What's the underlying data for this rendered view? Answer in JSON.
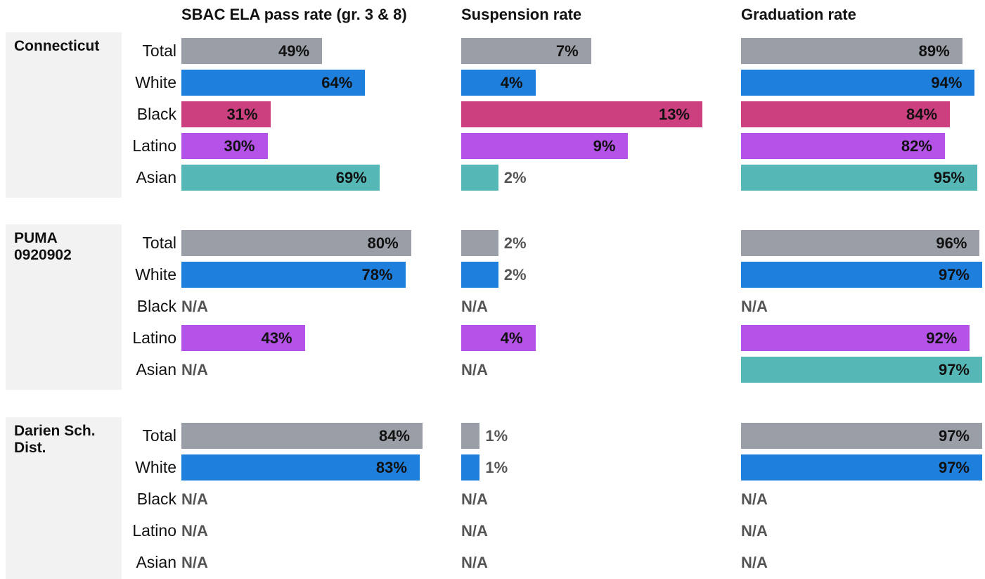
{
  "chart_data": {
    "type": "bar",
    "orientation": "horizontal",
    "categories": [
      "Total",
      "White",
      "Black",
      "Latino",
      "Asian"
    ],
    "colors": [
      "#9a9fa7",
      "#1f7fdc",
      "#cc4080",
      "#b552e8",
      "#55b7b6"
    ],
    "groups": [
      "Connecticut",
      "PUMA 0920902",
      "Darien Sch. Dist."
    ],
    "panels": [
      {
        "title": "SBAC ELA pass rate (gr. 3 & 8)",
        "xlim": [
          0,
          84
        ],
        "values": [
          [
            49,
            64,
            31,
            30,
            69
          ],
          [
            80,
            78,
            null,
            43,
            null
          ],
          [
            84,
            83,
            null,
            null,
            null
          ]
        ],
        "value_labels": [
          [
            "49%",
            "64%",
            "31%",
            "30%",
            "69%"
          ],
          [
            "80%",
            "78%",
            "N/A",
            "43%",
            "N/A"
          ],
          [
            "84%",
            "83%",
            "N/A",
            "N/A",
            "N/A"
          ]
        ]
      },
      {
        "title": "Suspension rate",
        "xlim": [
          0,
          13
        ],
        "values": [
          [
            7,
            4,
            13,
            9,
            2
          ],
          [
            2,
            2,
            null,
            4,
            null
          ],
          [
            1,
            1,
            null,
            null,
            null
          ]
        ],
        "value_labels": [
          [
            "7%",
            "4%",
            "13%",
            "9%",
            "2%"
          ],
          [
            "2%",
            "2%",
            "N/A",
            "4%",
            "N/A"
          ],
          [
            "1%",
            "1%",
            "N/A",
            "N/A",
            "N/A"
          ]
        ]
      },
      {
        "title": "Graduation rate",
        "xlim": [
          0,
          97
        ],
        "values": [
          [
            89,
            94,
            84,
            82,
            95
          ],
          [
            96,
            97,
            null,
            92,
            97
          ],
          [
            97,
            97,
            null,
            null,
            null
          ]
        ],
        "value_labels": [
          [
            "89%",
            "94%",
            "84%",
            "82%",
            "95%"
          ],
          [
            "96%",
            "97%",
            "N/A",
            "92%",
            "97%"
          ],
          [
            "97%",
            "97%",
            "N/A",
            "N/A",
            "N/A"
          ]
        ]
      }
    ]
  }
}
